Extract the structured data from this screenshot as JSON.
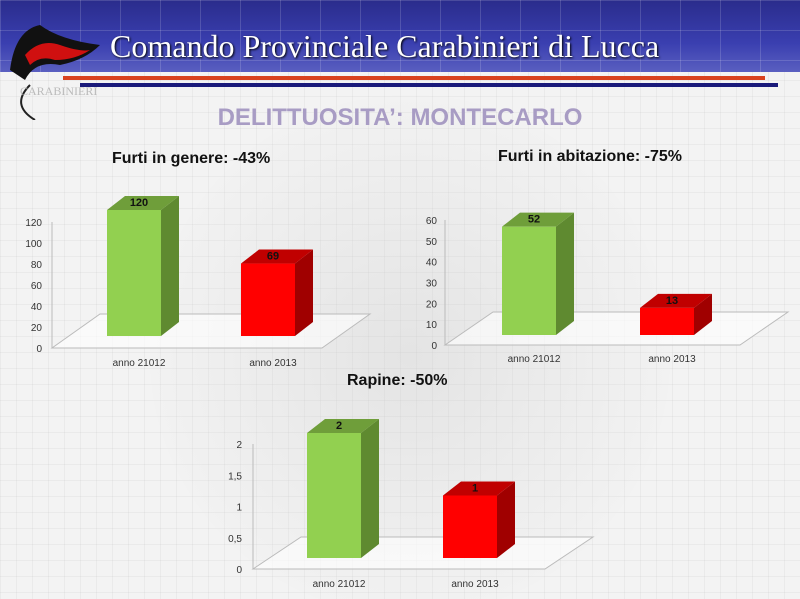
{
  "header": {
    "title": "Comando Provinciale Carabinieri di Lucca",
    "logo_text": "CARABINIERI"
  },
  "subtitle": "DELITTUOSITA’: MONTECARLO",
  "colors": {
    "bar_2012": "#92d050",
    "bar_2012_side": "#5f8a30",
    "bar_2012_top": "#6f9e3a",
    "bar_2013": "#ff0000",
    "bar_2013_side": "#a00000",
    "bar_2013_top": "#c00000"
  },
  "chart_data": [
    {
      "type": "bar",
      "title": "Furti in genere: -43%",
      "categories": [
        "anno 21012",
        "anno 2013"
      ],
      "values": [
        120,
        69
      ],
      "yticks": [
        "0",
        "20",
        "40",
        "60",
        "80",
        "100",
        "120"
      ],
      "ylim": [
        0,
        120
      ]
    },
    {
      "type": "bar",
      "title": "Furti in abitazione: -75%",
      "categories": [
        "anno 21012",
        "anno 2013"
      ],
      "values": [
        52,
        13
      ],
      "yticks": [
        "0",
        "10",
        "20",
        "30",
        "40",
        "50",
        "60"
      ],
      "ylim": [
        0,
        60
      ]
    },
    {
      "type": "bar",
      "title": "Rapine: -50%",
      "categories": [
        "anno 21012",
        "anno 2013"
      ],
      "values": [
        2,
        1
      ],
      "yticks": [
        "0",
        "0,5",
        "1",
        "1,5",
        "2"
      ],
      "ylim": [
        0,
        2
      ]
    }
  ]
}
